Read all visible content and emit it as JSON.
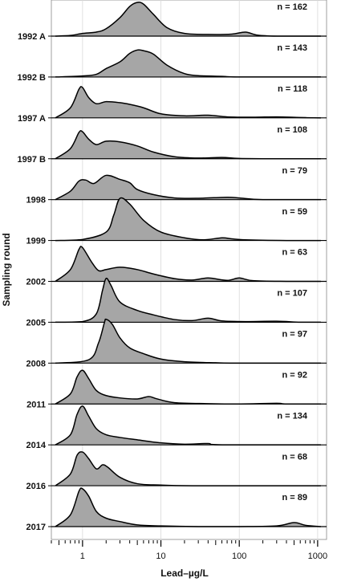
{
  "chart_data": {
    "type": "ridgeline",
    "xlabel": "Lead–µg/L",
    "ylabel": "Sampling round",
    "x_scale": "log",
    "xlim": [
      0.4,
      1300
    ],
    "x_ticks": [
      "1",
      "10",
      "100",
      "1000"
    ],
    "grid": true,
    "fill_color": "#a6a6a6",
    "series": [
      {
        "name": "1992 A",
        "n_label": "n = 162",
        "points": [
          [
            0.45,
            0
          ],
          [
            0.7,
            0.02
          ],
          [
            1,
            0.08
          ],
          [
            1.5,
            0.12
          ],
          [
            2,
            0.22
          ],
          [
            3,
            0.55
          ],
          [
            4,
            0.88
          ],
          [
            5,
            1.0
          ],
          [
            6,
            0.95
          ],
          [
            8,
            0.65
          ],
          [
            12,
            0.25
          ],
          [
            20,
            0.08
          ],
          [
            40,
            0.05
          ],
          [
            80,
            0.06
          ],
          [
            120,
            0.12
          ],
          [
            170,
            0.03
          ],
          [
            300,
            0
          ],
          [
            1100,
            0
          ]
        ]
      },
      {
        "name": "1992 B",
        "n_label": "n = 143",
        "points": [
          [
            0.45,
            0
          ],
          [
            1,
            0.03
          ],
          [
            1.5,
            0.08
          ],
          [
            2,
            0.25
          ],
          [
            3,
            0.45
          ],
          [
            4,
            0.7
          ],
          [
            5,
            0.8
          ],
          [
            6,
            0.78
          ],
          [
            8,
            0.68
          ],
          [
            12,
            0.35
          ],
          [
            20,
            0.1
          ],
          [
            30,
            0.04
          ],
          [
            60,
            0.02
          ],
          [
            100,
            0
          ],
          [
            1100,
            0
          ]
        ]
      },
      {
        "name": "1997 A",
        "n_label": "n = 118",
        "points": [
          [
            0.45,
            0
          ],
          [
            0.7,
            0.3
          ],
          [
            0.9,
            0.85
          ],
          [
            1,
            0.9
          ],
          [
            1.2,
            0.6
          ],
          [
            1.5,
            0.42
          ],
          [
            2,
            0.48
          ],
          [
            3,
            0.45
          ],
          [
            4,
            0.4
          ],
          [
            6,
            0.3
          ],
          [
            10,
            0.12
          ],
          [
            20,
            0.06
          ],
          [
            40,
            0.08
          ],
          [
            70,
            0.03
          ],
          [
            150,
            0.02
          ],
          [
            300,
            0.03
          ],
          [
            600,
            0.01
          ],
          [
            1100,
            0
          ]
        ]
      },
      {
        "name": "1997 B",
        "n_label": "n = 108",
        "points": [
          [
            0.45,
            0
          ],
          [
            0.7,
            0.3
          ],
          [
            0.9,
            0.78
          ],
          [
            1,
            0.8
          ],
          [
            1.2,
            0.58
          ],
          [
            1.5,
            0.42
          ],
          [
            2,
            0.52
          ],
          [
            3,
            0.5
          ],
          [
            5,
            0.38
          ],
          [
            8,
            0.2
          ],
          [
            15,
            0.06
          ],
          [
            30,
            0.02
          ],
          [
            60,
            0.04
          ],
          [
            100,
            0.01
          ],
          [
            300,
            0
          ],
          [
            1100,
            0
          ]
        ]
      },
      {
        "name": "1998",
        "n_label": "n = 79",
        "points": [
          [
            0.45,
            0
          ],
          [
            0.7,
            0.25
          ],
          [
            0.9,
            0.55
          ],
          [
            1.1,
            0.58
          ],
          [
            1.4,
            0.48
          ],
          [
            2,
            0.72
          ],
          [
            3,
            0.6
          ],
          [
            4,
            0.5
          ],
          [
            5,
            0.3
          ],
          [
            8,
            0.15
          ],
          [
            15,
            0.05
          ],
          [
            30,
            0.04
          ],
          [
            70,
            0.07
          ],
          [
            100,
            0.05
          ],
          [
            200,
            0
          ],
          [
            1100,
            0
          ]
        ]
      },
      {
        "name": "1999",
        "n_label": "n = 59",
        "points": [
          [
            0.45,
            0
          ],
          [
            1,
            0.03
          ],
          [
            2,
            0.25
          ],
          [
            2.5,
            0.75
          ],
          [
            3,
            1.25
          ],
          [
            4,
            1.08
          ],
          [
            6,
            0.6
          ],
          [
            10,
            0.25
          ],
          [
            20,
            0.08
          ],
          [
            35,
            0.02
          ],
          [
            60,
            0.08
          ],
          [
            80,
            0.05
          ],
          [
            120,
            0.02
          ],
          [
            400,
            0
          ],
          [
            1100,
            0
          ]
        ]
      },
      {
        "name": "2002",
        "n_label": "n = 63",
        "points": [
          [
            0.45,
            0
          ],
          [
            0.7,
            0.35
          ],
          [
            0.9,
            0.95
          ],
          [
            1,
            1.0
          ],
          [
            1.3,
            0.58
          ],
          [
            1.6,
            0.32
          ],
          [
            2,
            0.35
          ],
          [
            3,
            0.42
          ],
          [
            5,
            0.35
          ],
          [
            8,
            0.22
          ],
          [
            15,
            0.08
          ],
          [
            25,
            0.04
          ],
          [
            40,
            0.1
          ],
          [
            70,
            0.03
          ],
          [
            100,
            0.1
          ],
          [
            150,
            0.02
          ],
          [
            400,
            0
          ],
          [
            1100,
            0
          ]
        ]
      },
      {
        "name": "2005",
        "n_label": "n = 107",
        "points": [
          [
            0.45,
            0
          ],
          [
            1,
            0.02
          ],
          [
            1.5,
            0.25
          ],
          [
            1.8,
            0.95
          ],
          [
            2,
            1.3
          ],
          [
            2.3,
            1.1
          ],
          [
            3,
            0.6
          ],
          [
            5,
            0.35
          ],
          [
            8,
            0.22
          ],
          [
            15,
            0.08
          ],
          [
            25,
            0.05
          ],
          [
            40,
            0.12
          ],
          [
            60,
            0.04
          ],
          [
            120,
            0.02
          ],
          [
            300,
            0.03
          ],
          [
            600,
            0
          ],
          [
            1100,
            0
          ]
        ]
      },
      {
        "name": "2008",
        "n_label": "n = 97",
        "points": [
          [
            0.45,
            0
          ],
          [
            1.2,
            0.1
          ],
          [
            1.6,
            0.6
          ],
          [
            1.9,
            1.2
          ],
          [
            2,
            1.3
          ],
          [
            2.4,
            1.15
          ],
          [
            3,
            0.75
          ],
          [
            4,
            0.45
          ],
          [
            6,
            0.28
          ],
          [
            10,
            0.12
          ],
          [
            20,
            0.04
          ],
          [
            50,
            0.01
          ],
          [
            100,
            0
          ],
          [
            1100,
            0
          ]
        ]
      },
      {
        "name": "2011",
        "n_label": "n = 92",
        "points": [
          [
            0.45,
            0
          ],
          [
            0.7,
            0.3
          ],
          [
            0.85,
            0.8
          ],
          [
            1,
            1.0
          ],
          [
            1.2,
            0.75
          ],
          [
            1.5,
            0.4
          ],
          [
            2,
            0.25
          ],
          [
            3,
            0.18
          ],
          [
            5,
            0.15
          ],
          [
            7,
            0.22
          ],
          [
            9,
            0.15
          ],
          [
            15,
            0.04
          ],
          [
            40,
            0.01
          ],
          [
            100,
            0
          ],
          [
            300,
            0.02
          ],
          [
            400,
            0
          ],
          [
            1100,
            0
          ]
        ]
      },
      {
        "name": "2014",
        "n_label": "n = 134",
        "points": [
          [
            0.45,
            0
          ],
          [
            0.7,
            0.3
          ],
          [
            0.85,
            0.9
          ],
          [
            1,
            1.15
          ],
          [
            1.2,
            0.85
          ],
          [
            1.5,
            0.48
          ],
          [
            2,
            0.3
          ],
          [
            3,
            0.22
          ],
          [
            5,
            0.15
          ],
          [
            10,
            0.06
          ],
          [
            20,
            0.02
          ],
          [
            40,
            0.04
          ],
          [
            60,
            0
          ],
          [
            1100,
            0
          ]
        ]
      },
      {
        "name": "2016",
        "n_label": "n = 68",
        "points": [
          [
            0.45,
            0
          ],
          [
            0.7,
            0.35
          ],
          [
            0.85,
            0.9
          ],
          [
            1,
            1.0
          ],
          [
            1.2,
            0.8
          ],
          [
            1.5,
            0.5
          ],
          [
            1.8,
            0.62
          ],
          [
            2.1,
            0.55
          ],
          [
            3,
            0.25
          ],
          [
            5,
            0.06
          ],
          [
            10,
            0.02
          ],
          [
            30,
            0
          ],
          [
            1100,
            0
          ]
        ]
      },
      {
        "name": "2017",
        "n_label": "n = 89",
        "points": [
          [
            0.45,
            0
          ],
          [
            0.7,
            0.35
          ],
          [
            0.9,
            1.05
          ],
          [
            1,
            1.12
          ],
          [
            1.2,
            0.9
          ],
          [
            1.5,
            0.45
          ],
          [
            2,
            0.25
          ],
          [
            3,
            0.15
          ],
          [
            5,
            0.05
          ],
          [
            10,
            0.02
          ],
          [
            30,
            0
          ],
          [
            100,
            0
          ],
          [
            300,
            0.02
          ],
          [
            500,
            0.12
          ],
          [
            700,
            0.04
          ],
          [
            1100,
            0
          ]
        ]
      }
    ]
  }
}
